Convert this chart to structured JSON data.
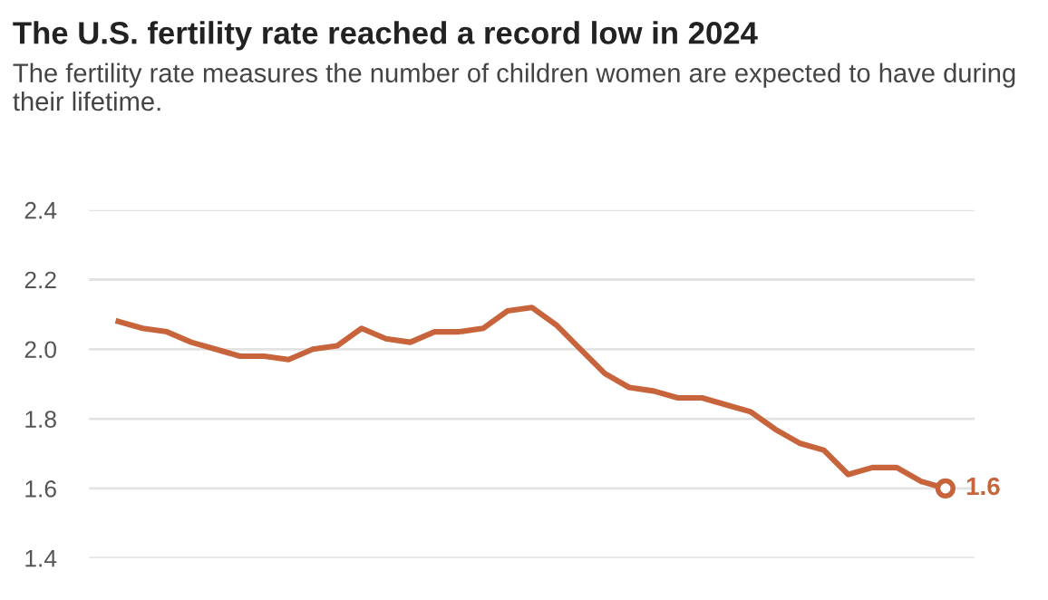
{
  "chart_data": {
    "type": "line",
    "title": "The U.S. fertility rate reached a record low in 2024",
    "subtitle": "The fertility rate measures the number of children women are expected to have during their lifetime.",
    "categories": [
      null,
      null,
      null,
      null,
      null,
      null,
      null,
      null,
      null,
      null,
      null,
      null,
      null,
      null,
      null,
      null,
      null,
      null,
      null,
      null,
      null,
      null,
      null,
      null,
      null,
      null,
      null,
      null,
      null,
      null,
      null,
      null,
      null,
      null,
      null
    ],
    "series": [
      {
        "color": "#c8643c",
        "values": [
          2.08,
          2.06,
          2.05,
          2.02,
          2.0,
          1.98,
          1.98,
          1.97,
          2.0,
          2.01,
          2.06,
          2.03,
          2.02,
          2.05,
          2.05,
          2.06,
          2.11,
          2.12,
          2.07,
          2.0,
          1.93,
          1.89,
          1.88,
          1.86,
          1.86,
          1.84,
          1.82,
          1.77,
          1.73,
          1.71,
          1.64,
          1.66,
          1.66,
          1.62,
          1.6
        ],
        "value_labels": [
          null,
          null,
          null,
          null,
          null,
          null,
          null,
          null,
          null,
          null,
          null,
          null,
          null,
          null,
          null,
          null,
          null,
          null,
          null,
          null,
          null,
          null,
          null,
          null,
          null,
          null,
          null,
          null,
          null,
          null,
          null,
          null,
          null,
          null,
          "1.6"
        ]
      }
    ],
    "ylim": [
      1.4,
      2.4
    ],
    "yticks": [
      1.4,
      1.6,
      1.8,
      {
        "value": 2.0,
        "label": "2.0"
      },
      2.2,
      2.4
    ],
    "grid": "y",
    "tick_labels": "y",
    "marker": "none",
    "line_style": "solid"
  }
}
